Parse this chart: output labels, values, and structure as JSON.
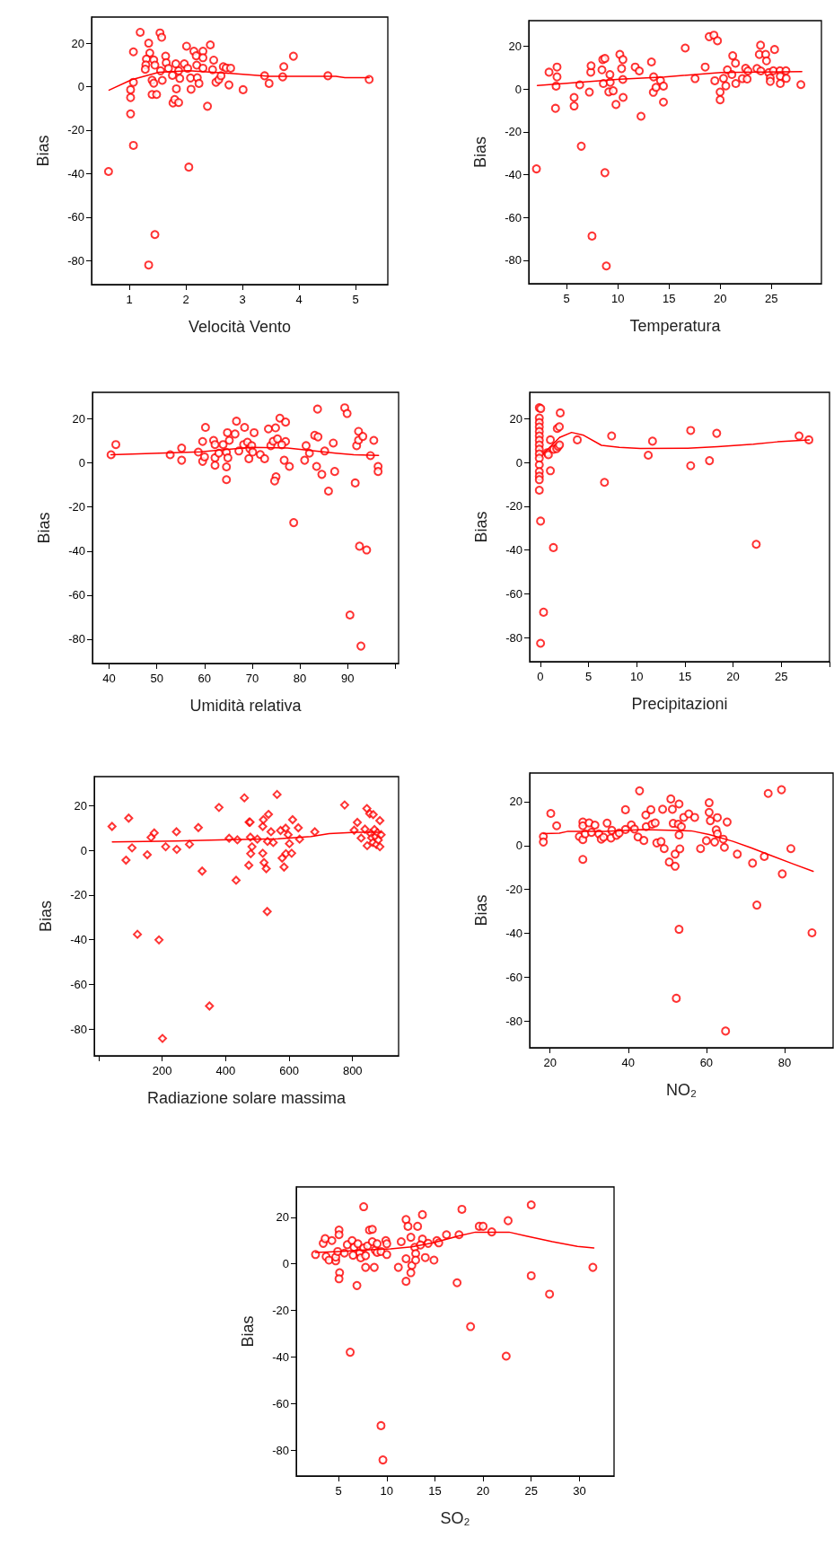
{
  "chart_data": [
    {
      "type": "scatter",
      "xlabel": "Velocità Vento",
      "ylabel": "Bias",
      "marker": "circle",
      "grid": false,
      "xlim": [
        0.33,
        5.57
      ],
      "xticks": [
        1,
        2,
        3,
        4,
        5
      ],
      "ylim": [
        -91,
        32
      ],
      "yticks": [
        -80,
        -60,
        -40,
        -20,
        0,
        20
      ],
      "series": [
        {
          "type": "scatter",
          "color": "#ff0000",
          "x": [
            0.63,
            1.02,
            1.02,
            1.02,
            1.07,
            1.07,
            1.07,
            1.19,
            1.34,
            1.36,
            1.3,
            1.29,
            1.28,
            1.4,
            1.43,
            1.4,
            1.48,
            1.45,
            1.34,
            1.54,
            1.57,
            1.43,
            1.45,
            1.55,
            1.58,
            1.64,
            1.65,
            1.69,
            1.77,
            1.8,
            1.83,
            1.87,
            1.82,
            1.87,
            1.76,
            1.89,
            2.01,
            1.97,
            2.03,
            2.05,
            2.09,
            2.08,
            2.14,
            2.18,
            2.19,
            2.2,
            2.23,
            2.3,
            2.3,
            2.3,
            2.38,
            2.43,
            2.47,
            2.49,
            2.53,
            2.58,
            2.62,
            2.66,
            2.71,
            2.79,
            2.76,
            3.01,
            3.39,
            3.47,
            3.71,
            3.73,
            3.9,
            4.51,
            5.24
          ],
          "values": [
            -39,
            -12.5,
            -5,
            -1.4,
            2,
            16,
            -27,
            25,
            20,
            15.5,
            12.7,
            10,
            8,
            3,
            1.6,
            -3.6,
            -3.6,
            -68,
            -82,
            24.7,
            22.7,
            12.3,
            9.9,
            7.3,
            2.9,
            14,
            11,
            8.4,
            -7.5,
            -5.9,
            -1,
            -7.3,
            10.5,
            7.3,
            5.2,
            3.8,
            18.6,
            10.5,
            8.4,
            -37,
            -1.2,
            4,
            16.3,
            14.2,
            9.9,
            4.1,
            1.5,
            16.3,
            13.3,
            8.5,
            -9,
            19.2,
            7.8,
            12.2,
            2,
            3.2,
            5,
            9.2,
            8.6,
            8.5,
            0.8,
            -1.4,
            5,
            1.5,
            4.5,
            9.2,
            14,
            5,
            3.3
          ]
        },
        {
          "type": "line",
          "color": "#ff0000",
          "marker": "none",
          "x": [
            0.64,
            1.04,
            1.52,
            2.05,
            2.9,
            3.48,
            4.65,
            4.81,
            5.24
          ],
          "values": [
            -1.6,
            3.2,
            6.6,
            7.3,
            5.9,
            4.8,
            4.8,
            4.1,
            4.1
          ]
        }
      ]
    },
    {
      "type": "scatter",
      "xlabel": "Temperatura",
      "ylabel": "Bias",
      "marker": "circle",
      "grid": false,
      "xlim": [
        1.3,
        29.9
      ],
      "xticks": [
        5,
        10,
        15,
        20,
        25
      ],
      "ylim": [
        -91,
        32
      ],
      "yticks": [
        -80,
        -60,
        -40,
        -20,
        0,
        20
      ],
      "series": [
        {
          "type": "scatter",
          "color": "#ff0000",
          "x": [
            2.05,
            3.28,
            3.91,
            3.97,
            4.06,
            4.06,
            5.73,
            5.73,
            6.28,
            6.43,
            7.22,
            7.36,
            7.39,
            7.48,
            8.45,
            8.53,
            8.74,
            8.59,
            8.74,
            8.88,
            9.12,
            9.23,
            9.26,
            9.55,
            9.82,
            10.2,
            10.5,
            10.37,
            10.49,
            10.52,
            11.7,
            12.1,
            12.27,
            13.29,
            13.5,
            13.47,
            13.73,
            14.17,
            14.46,
            14.46,
            16.59,
            17.55,
            18.54,
            18.93,
            19.39,
            19.74,
            19.48,
            20.0,
            20.0,
            20.33,
            20.56,
            20.71,
            21.23,
            21.15,
            21.5,
            21.53,
            22.17,
            22.49,
            22.72,
            22.64,
            23.6,
            23.83,
            23.95,
            24.45,
            24.53,
            23.98,
            24.76,
            24.9,
            24.9,
            25.2,
            25.32,
            25.85,
            25.88,
            25.88,
            26.43,
            26.46,
            27.89
          ],
          "values": [
            -37.3,
            7.9,
            -9,
            1.4,
            5.7,
            10.3,
            -7.9,
            -3.9,
            2,
            -26.7,
            -1.4,
            7.9,
            10.9,
            -68.7,
            9,
            13.8,
            14.3,
            2.6,
            -39.1,
            -82.7,
            -1.3,
            6.8,
            3.2,
            -0.8,
            -7.2,
            16.2,
            13.8,
            9.6,
            4.5,
            -3.9,
            10.3,
            8.5,
            -12.7,
            12.7,
            5.7,
            -1.5,
            0.8,
            4,
            1.4,
            -6.1,
            19.2,
            4.9,
            10.3,
            24.5,
            25.2,
            22.6,
            3.9,
            -1.4,
            -5,
            5,
            1.5,
            9,
            15.6,
            6.8,
            12.1,
            2.6,
            4.9,
            9.7,
            8.5,
            4.7,
            9.6,
            16.2,
            20.5,
            16.2,
            13.2,
            8.5,
            7.7,
            5.2,
            3.6,
            8.6,
            18.5,
            8.6,
            6,
            2.6,
            8.6,
            5,
            2.1
          ]
        },
        {
          "type": "line",
          "color": "#ff0000",
          "marker": "none",
          "x": [
            2.14,
            3.6,
            10.17,
            14.55,
            20.1,
            27.98
          ],
          "values": [
            1.7,
            2.2,
            4.6,
            5.7,
            7.8,
            8.2
          ]
        }
      ]
    },
    {
      "type": "scatter",
      "xlabel": "Umidità relativa",
      "ylabel": "Bias",
      "marker": "circle",
      "grid": false,
      "xlim": [
        36.5,
        100.7
      ],
      "xticks": [
        40,
        50,
        60,
        70,
        80,
        90,
        {
          "value": 100,
          "label": null
        }
      ],
      "ylim": [
        -91,
        32
      ],
      "yticks": [
        -80,
        -60,
        -40,
        -20,
        0,
        20
      ],
      "series": [
        {
          "type": "scatter",
          "color": "#ff0000",
          "x": [
            40.4,
            41.4,
            52.8,
            55.2,
            55.2,
            58.7,
            59.6,
            60.2,
            59.6,
            60,
            61.9,
            62.2,
            62.2,
            62.2,
            63,
            63.9,
            64.6,
            64.6,
            64.6,
            64.8,
            64.9,
            65.2,
            66.4,
            66.7,
            67.2,
            68.4,
            68.2,
            69,
            69.3,
            69.5,
            69.9,
            70.4,
            70.1,
            71.7,
            72.6,
            73.4,
            73.9,
            74.4,
            74.9,
            75,
            74.7,
            75.3,
            75.8,
            77,
            77,
            76.2,
            76.7,
            77.8,
            78.7,
            81,
            81.3,
            82,
            83.1,
            83.8,
            83.5,
            83.7,
            84.6,
            85.2,
            86,
            87,
            87.3,
            89.4,
            89.9,
            90.5,
            91.6,
            91.9,
            92.3,
            92.3,
            92.5,
            93.2,
            94,
            92.8,
            94.8,
            95.5,
            96.4,
            96.4
          ],
          "values": [
            3.7,
            8.3,
            3.7,
            6.7,
            1.2,
            4.9,
            9.7,
            16.1,
            0.7,
            2.7,
            10.2,
            8.3,
            2.3,
            -1.1,
            4.4,
            8.3,
            4.8,
            -1.8,
            -7.6,
            13.7,
            2.3,
            10.2,
            13.1,
            18.9,
            5.4,
            16.1,
            8.3,
            9.4,
            1.9,
            6.4,
            7.8,
            13.7,
            4.9,
            3.8,
            1.9,
            15.4,
            7.8,
            9.8,
            15.9,
            -6.3,
            -8.2,
            10.9,
            20.3,
            18.5,
            9.7,
            8.2,
            1.2,
            -1.6,
            -27.1,
            1.2,
            7.8,
            4.4,
            12.5,
            11.8,
            -1.6,
            24.4,
            -5.2,
            5.4,
            -12.8,
            9,
            -3.9,
            25,
            22.4,
            -69,
            -9.1,
            7.8,
            14.3,
            10.3,
            -37.8,
            12,
            -39.5,
            -83.1,
            3.3,
            10.2,
            -1.6,
            -3.9
          ]
        },
        {
          "type": "line",
          "color": "#ff0000",
          "marker": "none",
          "x": [
            40.4,
            59.2,
            69.9,
            77.4,
            87.5,
            91.3,
            96.5
          ],
          "values": [
            3.7,
            5,
            7.1,
            6.7,
            4.4,
            3.7,
            3.4
          ]
        }
      ]
    },
    {
      "type": "scatter",
      "xlabel": "Precipitazioni",
      "ylabel": "Bias",
      "marker": "circle",
      "grid": false,
      "xlim": [
        -1.1,
        30
      ],
      "xticks": [
        0,
        5,
        10,
        15,
        20,
        25,
        {
          "value": 30,
          "label": null
        }
      ],
      "ylim": [
        -91,
        32
      ],
      "yticks": [
        -80,
        -60,
        -40,
        -20,
        0,
        20
      ],
      "series": [
        {
          "type": "scatter",
          "color": "#ff0000",
          "x": [
            -0.1,
            0.05,
            -0.1,
            -0.1,
            -0.1,
            -0.1,
            -0.1,
            -0.1,
            -0.1,
            -0.1,
            -0.1,
            -0.1,
            -0.1,
            -0.1,
            -0.1,
            -0.1,
            -0.1,
            0.03,
            0.34,
            0.03,
            0.71,
            0.84,
            1.05,
            1.05,
            1.36,
            1.39,
            1.7,
            1.86,
            2.0,
            1.76,
            1.98,
            2.07,
            3.84,
            6.66,
            7.4,
            11.2,
            11.64,
            15.6,
            15.6,
            17.55,
            18.3,
            22.4,
            26.84,
            27.86
          ],
          "values": [
            25,
            24.6,
            20.3,
            18.2,
            16.2,
            14.1,
            12.1,
            10.1,
            8,
            6,
            3.9,
            1.9,
            -1.1,
            -4.2,
            -6.3,
            -7.9,
            -12.7,
            -26.8,
            -68.4,
            -82.6,
            4.4,
            3.5,
            10.3,
            -3.8,
            -38.9,
            6,
            6.3,
            7.3,
            8,
            15.5,
            16.3,
            22.6,
            10.3,
            -9.1,
            12.1,
            3.3,
            9.7,
            14.6,
            -1.5,
            0.8,
            13.3,
            -37.4,
            12.1,
            10.3
          ]
        },
        {
          "type": "line",
          "color": "#ff0000",
          "marker": "none",
          "x": [
            0.3,
            2,
            3.25,
            4.5,
            6.35,
            8.2,
            10.37,
            15.3,
            18.4,
            22.1,
            24.6,
            27.9
          ],
          "values": [
            3.9,
            11.4,
            13.7,
            12.4,
            7.8,
            6.9,
            6.4,
            6.5,
            7.2,
            8.3,
            9.4,
            10.3
          ]
        }
      ]
    },
    {
      "type": "scatter",
      "xlabel": "Radiazione solare massima",
      "ylabel": "Bias",
      "marker": "diamond",
      "grid": false,
      "xlim": [
        -14,
        945
      ],
      "xticks": [
        {
          "value": 0,
          "label": null
        },
        200,
        400,
        600,
        800
      ],
      "ylim": [
        -92,
        33
      ],
      "yticks": [
        -80,
        -60,
        -40,
        -20,
        0,
        20
      ],
      "series": [
        {
          "type": "scatter",
          "color": "#ff0000",
          "x": [
            42,
            86,
            94.5,
            105,
            122,
            153,
            165,
            175,
            190,
            201,
            211,
            245,
            246,
            286,
            314,
            326,
            349,
            379,
            411,
            433,
            437,
            459,
            474,
            477,
            478,
            479,
            473,
            483,
            500,
            517,
            519,
            517,
            521,
            528,
            531,
            535,
            532,
            543,
            550,
            562,
            573,
            578,
            584,
            590,
            589,
            597,
            601,
            608,
            611,
            629,
            633,
            681,
            775,
            805,
            815,
            827,
            839,
            845,
            846,
            854,
            857,
            860,
            864,
            865,
            869,
            872,
            875,
            878,
            881,
            886,
            886,
            890
          ],
          "values": [
            10.7,
            -4.4,
            14.4,
            1.1,
            -37.6,
            -2,
            5.8,
            7.8,
            -40.1,
            -84.2,
            1.6,
            8.3,
            0.4,
            2.7,
            10.2,
            -9.3,
            -69.7,
            19.2,
            5.4,
            -13.4,
            4.7,
            23.5,
            12.6,
            12.6,
            5.9,
            -1.5,
            -6.7,
            1.6,
            5,
            10.7,
            13.7,
            -1.3,
            -5.5,
            -8.2,
            -27.4,
            16.1,
            4,
            8.3,
            3.5,
            25,
            8.9,
            -3.5,
            -7.5,
            -1.5,
            9.9,
            7,
            3,
            -1.3,
            13.7,
            10.1,
            5,
            8.3,
            20.3,
            9,
            12.5,
            5.5,
            9.5,
            18.7,
            2.1,
            16.4,
            7.5,
            5.6,
            3.5,
            16,
            9.3,
            6.2,
            2.6,
            7.9,
            4.6,
            13.3,
            1.6,
            7
          ]
        },
        {
          "type": "line",
          "color": "#ff0000",
          "marker": "none",
          "x": [
            43,
            240,
            410,
            565,
            669,
            726,
            810,
            890
          ],
          "values": [
            3.8,
            4.2,
            4.8,
            5.2,
            6.2,
            7.5,
            8.1,
            8.1
          ]
        }
      ]
    },
    {
      "type": "scatter",
      "xlabel": "NO₂",
      "ylabel": "Bias",
      "marker": "circle",
      "grid": false,
      "xlim": [
        14.8,
        92.4
      ],
      "xticks": [
        20,
        40,
        60,
        80
      ],
      "ylim": [
        -92,
        33
      ],
      "yticks": [
        -80,
        -60,
        -40,
        -20,
        0,
        20
      ],
      "series": [
        {
          "type": "scatter",
          "color": "#ff0000",
          "x": [
            18.3,
            18.3,
            20.2,
            21.7,
            27.5,
            28.4,
            28.4,
            28.4,
            28.4,
            29,
            30,
            30.6,
            31.5,
            32.5,
            33.1,
            33.7,
            34.6,
            35.6,
            35.8,
            37,
            37.7,
            39.3,
            39.3,
            40.8,
            41.6,
            42.5,
            42.9,
            44,
            44.5,
            44.6,
            45.8,
            46.1,
            46.9,
            47.3,
            48.4,
            48.8,
            49.2,
            50.5,
            50.9,
            51.3,
            51.5,
            52,
            52,
            52.3,
            52.8,
            53,
            53,
            53,
            53.2,
            53.6,
            54.2,
            55.5,
            57,
            58.5,
            60,
            60.7,
            60.7,
            61,
            62.1,
            62.5,
            62.8,
            62.8,
            64.3,
            64.6,
            64.9,
            65.3,
            67.9,
            71.8,
            72.9,
            74.8,
            75.8,
            79.2,
            79.4,
            81.6,
            87
          ],
          "values": [
            4.1,
            1.6,
            14.6,
            9,
            4.1,
            10.7,
            9,
            2.7,
            -6.3,
            5.3,
            10.3,
            6,
            9.3,
            5.3,
            2.9,
            3.8,
            10.2,
            3.4,
            6.9,
            4.6,
            5.7,
            16.3,
            7.3,
            9.4,
            7.5,
            3.9,
            24.9,
            2.3,
            13.9,
            8.6,
            16.3,
            9.7,
            10.3,
            1.2,
            1.8,
            16.5,
            -1.4,
            -7.5,
            21.2,
            16.5,
            10.1,
            -3.9,
            -9.4,
            -69.5,
            9.7,
            18.9,
            4.8,
            -38.1,
            -1.5,
            8.6,
            12.8,
            14.4,
            12.8,
            -1.4,
            2.2,
            19.5,
            15.1,
            11.3,
            1.6,
            7.1,
            12.7,
            5.3,
            2.9,
            -0.8,
            -84.4,
            10.7,
            -3.9,
            -8,
            -27.1,
            -5,
            23.7,
            25.4,
            -12.9,
            -1.4,
            -39.7
          ]
        },
        {
          "type": "line",
          "color": "#ff0000",
          "marker": "none",
          "x": [
            18.3,
            22.4,
            24.4,
            33.9,
            43.9,
            56.1,
            60.7,
            66.8,
            71.4,
            76,
            82.1,
            87.3
          ],
          "values": [
            5.4,
            5.6,
            6.4,
            6.4,
            7.3,
            6.7,
            5,
            1.9,
            -1,
            -4.2,
            -8.3,
            -11.7
          ]
        }
      ]
    },
    {
      "type": "scatter",
      "xlabel": "SO₂",
      "ylabel": "Bias",
      "marker": "circle",
      "grid": false,
      "xlim": [
        0.6,
        33.6
      ],
      "xticks": [
        5,
        10,
        15,
        20,
        25,
        30
      ],
      "ylim": [
        -91,
        33
      ],
      "yticks": [
        -80,
        -60,
        -40,
        -20,
        0,
        20
      ],
      "series": [
        {
          "type": "scatter",
          "color": "#ff0000",
          "x": [
            2.6,
            3.4,
            3.6,
            4.3,
            3.7,
            4,
            4.7,
            4.7,
            5.04,
            5.04,
            4.9,
            5.1,
            5.04,
            5.6,
            5.9,
            6.4,
            6.2,
            6.5,
            6.6,
            6.9,
            7,
            7.2,
            7.3,
            7.6,
            7.6,
            7.8,
            7.8,
            8,
            8.2,
            8.5,
            8.5,
            8.7,
            8.8,
            9,
            9,
            9.4,
            9.6,
            9.4,
            9.9,
            10,
            10,
            11.2,
            11.5,
            12,
            12.2,
            12,
            12,
            12.5,
            12.6,
            12.5,
            12.9,
            13,
            13,
            13.2,
            13.7,
            13.7,
            13.5,
            14,
            14.3,
            14.9,
            15.2,
            15.4,
            16.2,
            17.5,
            17.3,
            17.8,
            18.7,
            19.6,
            20,
            20.9,
            22.4,
            22.6,
            25,
            25,
            26.9,
            31.4
          ],
          "values": [
            4,
            8.8,
            10.8,
            10,
            3.1,
            1.6,
            1.3,
            2.9,
            14.5,
            12.5,
            5.3,
            -3.8,
            -6.4,
            4.6,
            8.2,
            10,
            -37.9,
            3.7,
            7.1,
            -9.3,
            8.6,
            4.8,
            2.6,
            24.5,
            6.8,
            3.5,
            -1.5,
            7.7,
            14.5,
            14.8,
            9.5,
            -1.5,
            5.9,
            8.6,
            4.9,
            -69.4,
            -84.1,
            5.3,
            10,
            4,
            8.6,
            -1.5,
            9.5,
            19,
            16.1,
            2.2,
            -7.5,
            11.4,
            -0.7,
            -3.8,
            7.1,
            4.4,
            1.6,
            16.1,
            21.1,
            10.6,
            8.1,
            2.7,
            8.8,
            1.6,
            10,
            9,
            12.5,
            12.5,
            -8.1,
            23.4,
            -26.9,
            16.1,
            16.1,
            13.7,
            -39.6,
            18.5,
            25.3,
            -5.1,
            -13,
            -1.5
          ]
        },
        {
          "type": "line",
          "color": "#ff0000",
          "marker": "none",
          "x": [
            2.6,
            5,
            7.7,
            10.4,
            12.6,
            14.8,
            17.4,
            19.2,
            22.7,
            24.5,
            27.2,
            29.8,
            31.5
          ],
          "values": [
            4.9,
            5.3,
            5.9,
            6.4,
            7.3,
            9,
            11.9,
            13.6,
            13.6,
            11.9,
            9.5,
            7.5,
            6.8
          ]
        }
      ]
    }
  ]
}
